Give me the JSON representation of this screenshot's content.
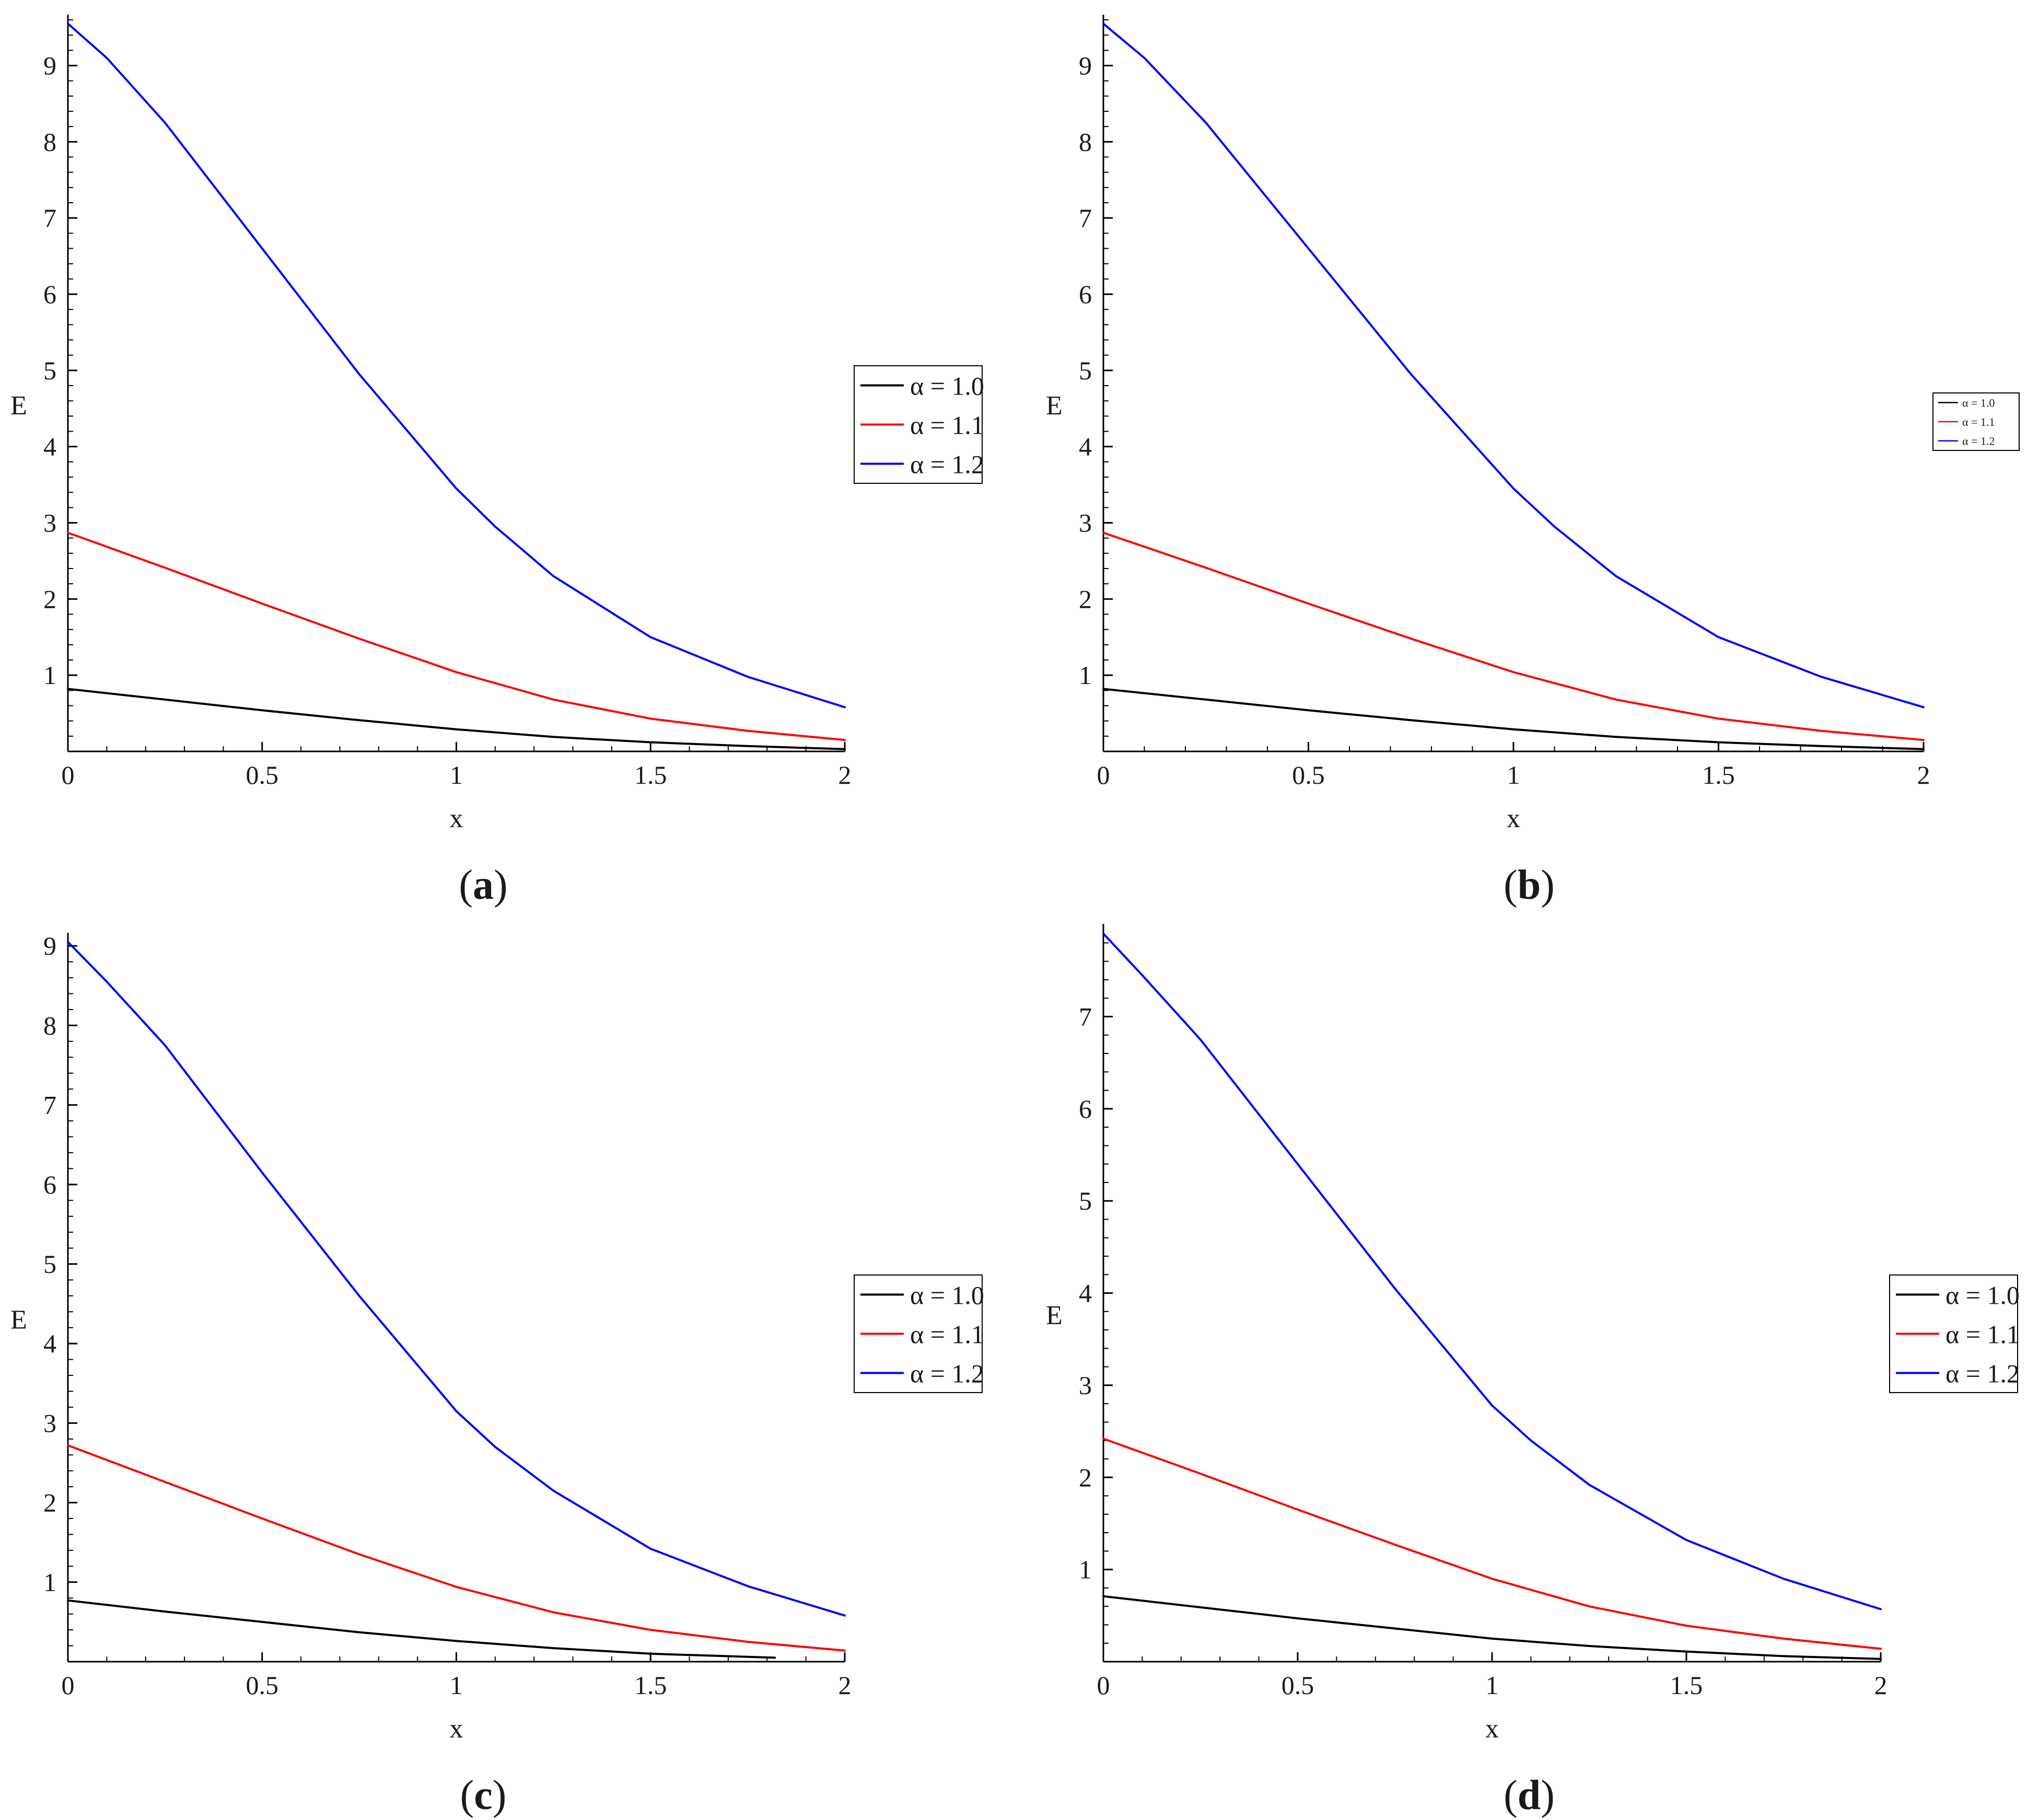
{
  "chart_data": [
    {
      "panel": "a",
      "caption_open": "(",
      "caption_letter": "a",
      "caption_close": ")",
      "type": "line",
      "xlabel": "x",
      "ylabel": "E",
      "xlim": [
        0,
        2
      ],
      "ylim": [
        0,
        9.6
      ],
      "xticks": [
        0,
        0.5,
        1,
        1.5,
        2
      ],
      "xtick_labels": [
        "0",
        "0.5",
        "1",
        "1.5",
        "2"
      ],
      "yticks": [
        1,
        2,
        3,
        4,
        5,
        6,
        7,
        8,
        9
      ],
      "ytick_labels": [
        "1",
        "2",
        "3",
        "4",
        "5",
        "6",
        "7",
        "8",
        "9"
      ],
      "legend_position": "right-middle",
      "legend_size": "normal",
      "series": [
        {
          "name": "α = 1.0",
          "color": "#000000",
          "x": [
            0,
            0.25,
            0.5,
            0.75,
            1.0,
            1.25,
            1.5,
            1.75,
            2.0
          ],
          "y": [
            0.82,
            0.68,
            0.54,
            0.41,
            0.29,
            0.19,
            0.12,
            0.07,
            0.03
          ]
        },
        {
          "name": "α = 1.1",
          "color": "#ff0000",
          "x": [
            0,
            0.25,
            0.5,
            0.75,
            1.0,
            1.25,
            1.5,
            1.75,
            2.0
          ],
          "y": [
            2.87,
            2.41,
            1.94,
            1.48,
            1.04,
            0.68,
            0.43,
            0.27,
            0.15
          ]
        },
        {
          "name": "α = 1.2",
          "color": "#0000ff",
          "x": [
            0,
            0.1,
            0.25,
            0.5,
            0.75,
            1.0,
            1.1,
            1.25,
            1.5,
            1.75,
            2.0
          ],
          "y": [
            9.55,
            9.1,
            8.25,
            6.6,
            4.95,
            3.45,
            2.95,
            2.3,
            1.5,
            0.98,
            0.58
          ]
        }
      ]
    },
    {
      "panel": "b",
      "caption_open": "(",
      "caption_letter": "b",
      "caption_close": ")",
      "type": "line",
      "xlabel": "x",
      "ylabel": "E",
      "xlim": [
        0,
        2
      ],
      "ylim": [
        0,
        9.6
      ],
      "xticks": [
        0,
        0.5,
        1,
        1.5,
        2
      ],
      "xtick_labels": [
        "0",
        "0.5",
        "1",
        "1.5",
        "2"
      ],
      "yticks": [
        1,
        2,
        3,
        4,
        5,
        6,
        7,
        8,
        9
      ],
      "ytick_labels": [
        "1",
        "2",
        "3",
        "4",
        "5",
        "6",
        "7",
        "8",
        "9"
      ],
      "legend_position": "right-middle",
      "legend_size": "small",
      "series": [
        {
          "name": "α = 1.0",
          "color": "#000000",
          "x": [
            0,
            0.25,
            0.5,
            0.75,
            1.0,
            1.25,
            1.5,
            1.75,
            2.0
          ],
          "y": [
            0.82,
            0.68,
            0.54,
            0.41,
            0.29,
            0.19,
            0.12,
            0.07,
            0.03
          ]
        },
        {
          "name": "α = 1.1",
          "color": "#ff0000",
          "x": [
            0,
            0.25,
            0.5,
            0.75,
            1.0,
            1.25,
            1.5,
            1.75,
            2.0
          ],
          "y": [
            2.87,
            2.41,
            1.94,
            1.48,
            1.04,
            0.68,
            0.43,
            0.27,
            0.15
          ]
        },
        {
          "name": "α = 1.2",
          "color": "#0000ff",
          "x": [
            0,
            0.1,
            0.25,
            0.5,
            0.75,
            1.0,
            1.1,
            1.25,
            1.5,
            1.75,
            2.0
          ],
          "y": [
            9.55,
            9.1,
            8.25,
            6.6,
            4.95,
            3.45,
            2.95,
            2.3,
            1.5,
            0.98,
            0.58
          ]
        }
      ]
    },
    {
      "panel": "c",
      "caption_open": "(",
      "caption_letter": "c",
      "caption_close": ")",
      "type": "line",
      "xlabel": "x",
      "ylabel": "E",
      "xlim": [
        0,
        2
      ],
      "ylim": [
        0,
        9.1
      ],
      "xticks": [
        0,
        0.5,
        1,
        1.5,
        2
      ],
      "xtick_labels": [
        "0",
        "0.5",
        "1",
        "1.5",
        "2"
      ],
      "yticks": [
        1,
        2,
        3,
        4,
        5,
        6,
        7,
        8,
        9
      ],
      "ytick_labels": [
        "1",
        "2",
        "3",
        "4",
        "5",
        "6",
        "7",
        "8",
        "9"
      ],
      "legend_position": "right-middle",
      "legend_size": "normal",
      "series": [
        {
          "name": "α = 1.0",
          "color": "#000000",
          "x": [
            0,
            0.25,
            0.5,
            0.75,
            1.0,
            1.25,
            1.5,
            1.82
          ],
          "y": [
            0.77,
            0.63,
            0.5,
            0.37,
            0.26,
            0.17,
            0.1,
            0.05
          ]
        },
        {
          "name": "α = 1.1",
          "color": "#ff0000",
          "x": [
            0,
            0.25,
            0.5,
            0.75,
            1.0,
            1.25,
            1.5,
            1.75,
            2.0
          ],
          "y": [
            2.72,
            2.26,
            1.8,
            1.35,
            0.94,
            0.62,
            0.4,
            0.25,
            0.14
          ]
        },
        {
          "name": "α = 1.2",
          "color": "#0000ff",
          "x": [
            0,
            0.1,
            0.25,
            0.5,
            0.75,
            1.0,
            1.1,
            1.25,
            1.5,
            1.75,
            2.0
          ],
          "y": [
            9.05,
            8.55,
            7.75,
            6.15,
            4.6,
            3.15,
            2.7,
            2.15,
            1.42,
            0.95,
            0.58
          ]
        }
      ]
    },
    {
      "panel": "d",
      "caption_open": "(",
      "caption_letter": "d",
      "caption_close": ")",
      "type": "line",
      "xlabel": "x",
      "ylabel": "E",
      "xlim": [
        0,
        2
      ],
      "ylim": [
        0,
        7.95
      ],
      "xticks": [
        0,
        0.5,
        1,
        1.5,
        2
      ],
      "xtick_labels": [
        "0",
        "0.5",
        "1",
        "1.5",
        "2"
      ],
      "yticks": [
        1,
        2,
        3,
        4,
        5,
        6,
        7
      ],
      "ytick_labels": [
        "1",
        "2",
        "3",
        "4",
        "5",
        "6",
        "7"
      ],
      "legend_position": "right-middle",
      "legend_size": "normal",
      "series": [
        {
          "name": "α = 1.0",
          "color": "#000000",
          "x": [
            0,
            0.25,
            0.5,
            0.75,
            1.0,
            1.25,
            1.5,
            1.75,
            2.0
          ],
          "y": [
            0.71,
            0.59,
            0.47,
            0.36,
            0.25,
            0.17,
            0.11,
            0.06,
            0.03
          ]
        },
        {
          "name": "α = 1.1",
          "color": "#ff0000",
          "x": [
            0,
            0.25,
            0.5,
            0.75,
            1.0,
            1.25,
            1.5,
            1.75,
            2.0
          ],
          "y": [
            2.42,
            2.04,
            1.65,
            1.27,
            0.9,
            0.6,
            0.39,
            0.25,
            0.14
          ]
        },
        {
          "name": "α = 1.2",
          "color": "#0000ff",
          "x": [
            0,
            0.1,
            0.25,
            0.5,
            0.75,
            1.0,
            1.1,
            1.25,
            1.5,
            1.75,
            2.0
          ],
          "y": [
            7.9,
            7.45,
            6.75,
            5.4,
            4.05,
            2.78,
            2.4,
            1.92,
            1.32,
            0.9,
            0.57
          ]
        }
      ]
    }
  ]
}
